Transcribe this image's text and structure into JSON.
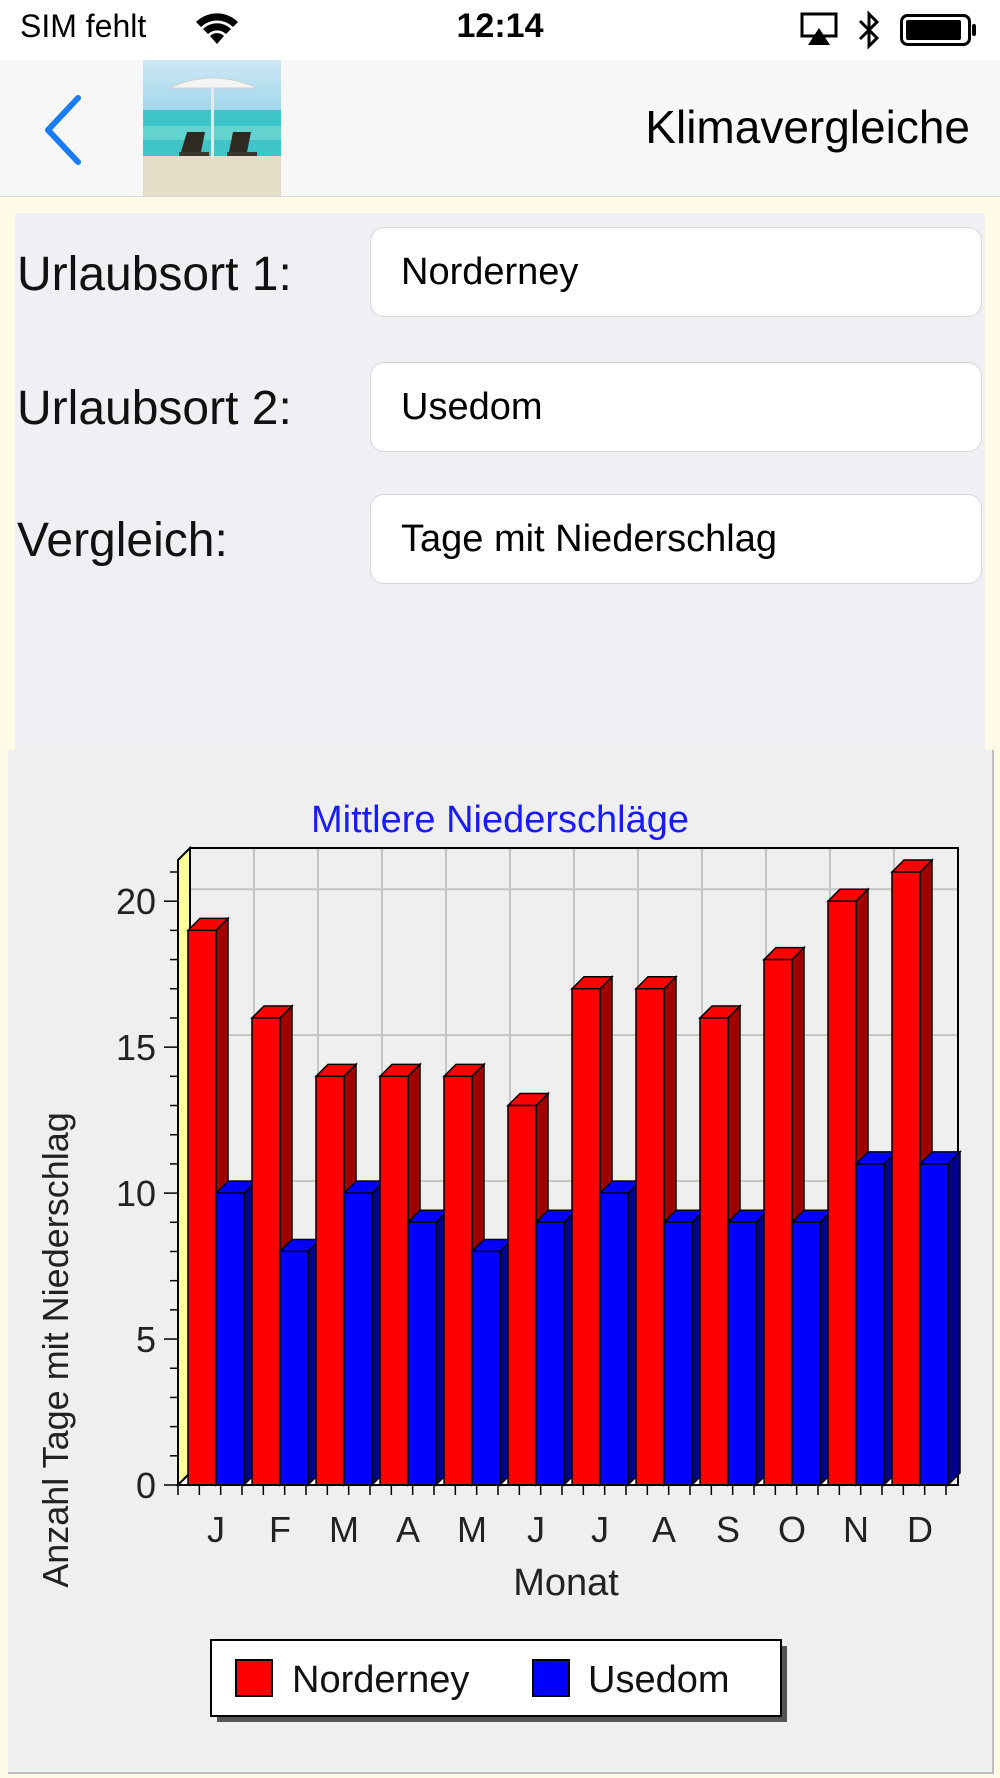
{
  "status_bar": {
    "carrier": "SIM fehlt",
    "time": "12:14",
    "icons": [
      "wifi-icon",
      "airplay-icon",
      "bluetooth-icon",
      "battery-icon"
    ]
  },
  "nav": {
    "title": "Klimavergleiche",
    "back_icon": "chevron-left-icon",
    "thumbnail": "beach-umbrella-thumbnail"
  },
  "form": {
    "location1_label": "Urlaubsort 1:",
    "location1_value": "Norderney",
    "location2_label": "Urlaubsort 2:",
    "location2_value": "Usedom",
    "comparison_label": "Vergleich:",
    "comparison_value": "Tage mit Niederschlag"
  },
  "colors": {
    "accent": "#1a7cf5",
    "norderney": "#ff0000",
    "usedom": "#0000ff",
    "title": "#1a1aff"
  },
  "chart_data": {
    "type": "bar",
    "title": "Mittlere Niederschläge",
    "xlabel": "Monat",
    "ylabel": "Anzahl Tage mit Niederschlag",
    "categories": [
      "J",
      "F",
      "M",
      "A",
      "M",
      "J",
      "J",
      "A",
      "S",
      "O",
      "N",
      "D"
    ],
    "series": [
      {
        "name": "Norderney",
        "values": [
          19,
          16,
          14,
          14,
          14,
          13,
          17,
          17,
          16,
          18,
          20,
          21
        ]
      },
      {
        "name": "Usedom",
        "values": [
          10,
          8,
          10,
          9,
          8,
          9,
          10,
          9,
          9,
          9,
          11,
          11
        ]
      }
    ],
    "ylim": [
      0,
      22
    ],
    "yticks": [
      "0",
      "5",
      "10",
      "15",
      "20"
    ],
    "grid": true,
    "legend_position": "bottom",
    "style": "3d"
  }
}
